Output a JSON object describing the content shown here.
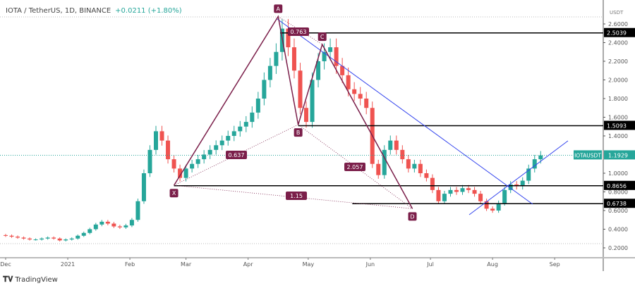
{
  "header": {
    "title": "IOTA / TetherUS, 1D, BINANCE",
    "change": "+0.0211 (+1.80%)"
  },
  "brand": "TradingView",
  "chart_data": {
    "type": "candlestick",
    "symbol": "IOTAUSDT",
    "currency": "USDT",
    "last_price": "1.1929",
    "y_ticks": [
      "2.6000",
      "2.4000",
      "2.2000",
      "2.0000",
      "1.8000",
      "1.6000",
      "1.4000",
      "1.0000",
      "0.8000",
      "0.6000",
      "0.4000",
      "0.2000"
    ],
    "ylim": [
      0.2,
      2.6
    ],
    "x_ticks": [
      "Dec",
      "2021",
      "Feb",
      "Mar",
      "Apr",
      "May",
      "Jun",
      "Jul",
      "Aug",
      "Sep"
    ],
    "start_date": "2020-12-01",
    "step_days": 3,
    "closes": [
      0.33,
      0.32,
      0.31,
      0.3,
      0.29,
      0.29,
      0.3,
      0.31,
      0.3,
      0.28,
      0.29,
      0.3,
      0.33,
      0.36,
      0.4,
      0.45,
      0.48,
      0.46,
      0.43,
      0.42,
      0.44,
      0.5,
      0.7,
      1.0,
      1.25,
      1.45,
      1.35,
      1.15,
      1.05,
      0.95,
      1.05,
      1.1,
      1.15,
      1.2,
      1.25,
      1.3,
      1.35,
      1.4,
      1.45,
      1.5,
      1.55,
      1.65,
      1.8,
      2.0,
      2.15,
      2.3,
      2.55,
      2.35,
      2.1,
      1.7,
      1.55,
      2.0,
      2.2,
      2.3,
      2.35,
      2.15,
      2.05,
      1.9,
      1.85,
      1.8,
      1.7,
      1.1,
      0.98,
      1.25,
      1.35,
      1.25,
      1.15,
      1.05,
      1.1,
      1.0,
      0.95,
      0.82,
      0.7,
      0.78,
      0.82,
      0.8,
      0.84,
      0.82,
      0.78,
      0.7,
      0.62,
      0.6,
      0.68,
      0.82,
      0.88,
      0.86,
      0.92,
      1.05,
      1.15,
      1.19
    ],
    "levels": [
      {
        "label": "2.5039",
        "price": 2.5039,
        "from": "2021-04-17"
      },
      {
        "label": "1.5093",
        "price": 1.5093,
        "from": "2021-04-26"
      },
      {
        "label": "0.8656",
        "price": 0.8656,
        "from": "2021-02-23"
      },
      {
        "label": "0.6738",
        "price": 0.6738,
        "from": "2021-05-23"
      }
    ],
    "pattern": {
      "points": [
        {
          "label": "X",
          "date": "2021-02-23",
          "price": 0.87
        },
        {
          "label": "A",
          "date": "2021-04-16",
          "price": 2.68
        },
        {
          "label": "B",
          "date": "2021-04-26",
          "price": 1.52
        },
        {
          "label": "C",
          "date": "2021-05-08",
          "price": 2.38
        },
        {
          "label": "D",
          "date": "2021-06-22",
          "price": 0.62
        }
      ],
      "ratios": [
        {
          "label": "0.637"
        },
        {
          "label": "0.763"
        },
        {
          "label": "2.057"
        },
        {
          "label": "1.15"
        }
      ]
    },
    "colors": {
      "up": "#26a69a",
      "down": "#ef5350",
      "pattern": "#7b1f4a",
      "trend": "#3344ee",
      "level": "#000000"
    }
  }
}
